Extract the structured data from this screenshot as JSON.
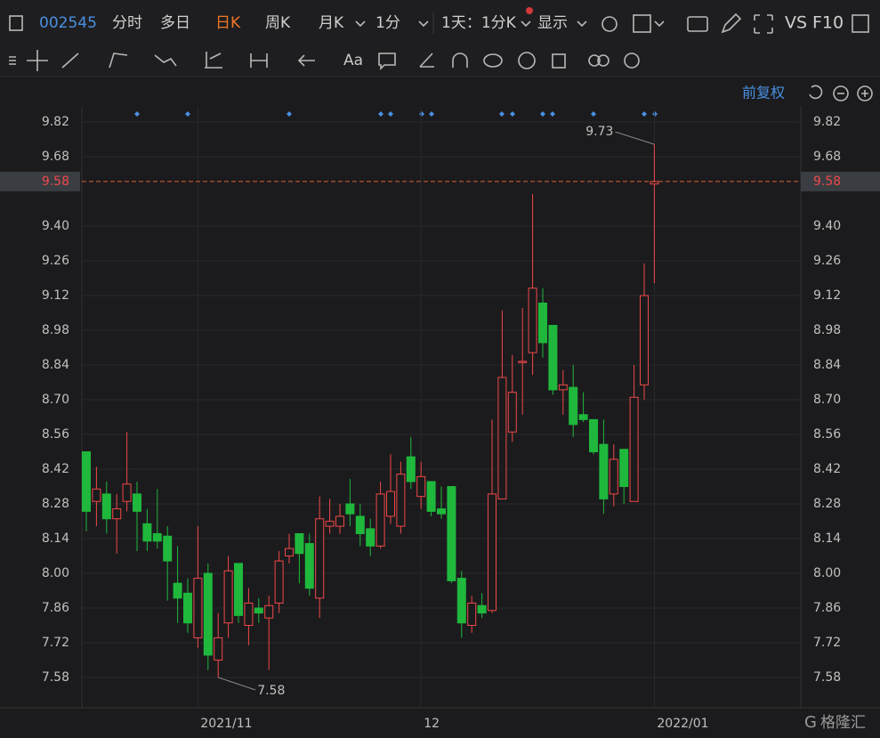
{
  "toolbar": {
    "code": "002545",
    "tabs": [
      "分时",
      "多日",
      "日K",
      "周K",
      "月K",
      "1分"
    ],
    "range": "1天：1分K",
    "display": "显示",
    "vs": "VS",
    "f10": "F10"
  },
  "adjust": "前复权",
  "watermark": "格隆汇",
  "chart_data": {
    "type": "candlestick",
    "categories": [
      null,
      null,
      null,
      null,
      null,
      null,
      null,
      null,
      null,
      null,
      null,
      "2021/11",
      null,
      null,
      null,
      null,
      null,
      null,
      null,
      null,
      null,
      null,
      null,
      null,
      null,
      null,
      null,
      null,
      null,
      null,
      null,
      null,
      null,
      "12",
      null,
      null,
      null,
      null,
      null,
      null,
      null,
      null,
      null,
      null,
      null,
      null,
      null,
      null,
      null,
      null,
      null,
      null,
      null,
      null,
      null,
      null,
      "2022/01"
    ],
    "open": [
      8.49,
      8.29,
      8.32,
      8.22,
      8.29,
      8.32,
      8.2,
      8.16,
      8.15,
      7.96,
      7.92,
      7.74,
      8.0,
      7.65,
      7.8,
      8.04,
      7.79,
      7.86,
      7.82,
      7.88,
      8.07,
      8.16,
      8.12,
      7.9,
      8.19,
      8.19,
      8.28,
      8.23,
      8.18,
      8.11,
      8.23,
      8.19,
      8.47,
      8.31,
      8.37,
      8.26,
      8.35,
      7.98,
      7.79,
      7.87,
      7.85,
      8.3,
      8.57,
      8.85,
      8.89,
      9.09,
      9.0,
      8.74,
      8.75,
      8.64,
      8.62,
      8.52,
      8.32,
      8.5,
      8.29,
      8.76,
      9.57
    ],
    "high": [
      8.49,
      8.43,
      8.37,
      8.32,
      8.57,
      8.37,
      8.26,
      8.34,
      8.19,
      8.11,
      7.98,
      8.19,
      8.04,
      7.84,
      8.07,
      8.04,
      7.94,
      7.9,
      7.91,
      8.09,
      8.16,
      8.16,
      8.16,
      8.31,
      8.3,
      8.28,
      8.38,
      8.28,
      8.22,
      8.37,
      8.48,
      8.45,
      8.55,
      8.45,
      8.37,
      8.35,
      8.35,
      8.01,
      7.91,
      7.92,
      8.62,
      9.06,
      8.88,
      9.07,
      9.53,
      9.15,
      9.0,
      8.82,
      8.84,
      8.73,
      8.62,
      8.62,
      8.52,
      8.5,
      8.84,
      9.25,
      9.73
    ],
    "low": [
      8.17,
      8.19,
      8.16,
      8.08,
      8.25,
      8.09,
      8.09,
      8.1,
      7.89,
      7.8,
      7.76,
      7.7,
      7.61,
      7.58,
      7.74,
      7.8,
      7.71,
      7.8,
      7.61,
      7.84,
      8.04,
      7.96,
      7.91,
      7.82,
      8.16,
      8.16,
      8.19,
      8.11,
      8.07,
      8.1,
      8.2,
      8.16,
      8.34,
      8.26,
      8.23,
      8.22,
      7.96,
      7.74,
      7.76,
      7.82,
      7.84,
      8.3,
      8.53,
      8.64,
      8.8,
      8.87,
      8.72,
      8.64,
      8.55,
      8.61,
      8.48,
      8.24,
      8.27,
      8.28,
      8.29,
      8.7,
      9.17
    ],
    "close": [
      8.25,
      8.34,
      8.22,
      8.26,
      8.36,
      8.25,
      8.13,
      8.13,
      8.05,
      7.9,
      7.8,
      7.98,
      7.67,
      7.74,
      8.01,
      7.83,
      7.88,
      7.84,
      7.87,
      8.05,
      8.1,
      8.08,
      7.94,
      8.22,
      8.21,
      8.23,
      8.24,
      8.16,
      8.11,
      8.32,
      8.33,
      8.4,
      8.37,
      8.39,
      8.25,
      8.24,
      7.97,
      7.8,
      7.88,
      7.84,
      8.32,
      8.79,
      8.73,
      8.855,
      9.15,
      8.93,
      8.74,
      8.76,
      8.6,
      8.62,
      8.49,
      8.3,
      8.46,
      8.35,
      8.71,
      9.12,
      9.58
    ],
    "up_color": "#f04848",
    "down_color": "#1fb83c",
    "ylim": [
      7.458,
      9.971
    ],
    "yticks": [
      9.82,
      9.68,
      {
        "value": 9.4,
        "label": "9.40"
      },
      9.26,
      9.12,
      8.98,
      8.84,
      {
        "value": 8.7,
        "label": "8.70"
      },
      8.56,
      8.42,
      8.28,
      8.14,
      {
        "value": 8,
        "label": "8.00"
      },
      7.86,
      7.72,
      7.58
    ],
    "grid": true,
    "last_price": 9.58,
    "max_label": 9.73,
    "min_label": 7.58
  }
}
